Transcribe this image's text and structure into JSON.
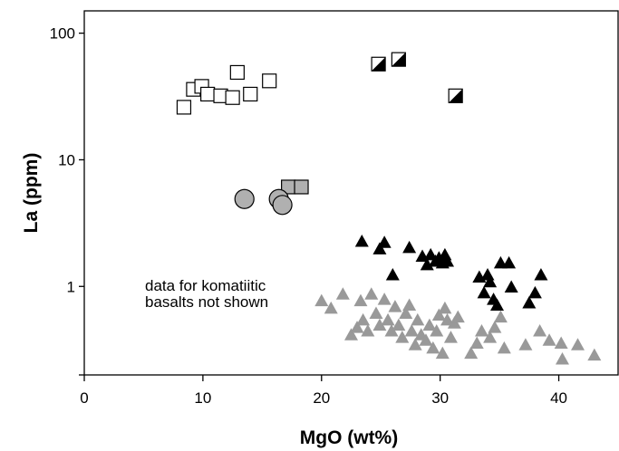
{
  "chart_data": {
    "type": "scatter",
    "xlabel": "MgO (wt%)",
    "ylabel": "La (ppm)",
    "xlim": [
      0,
      45
    ],
    "ylim": [
      0.2,
      150
    ],
    "y_scale": "log",
    "x_ticks": [
      0,
      10,
      20,
      30,
      40
    ],
    "x_tick_labels": [
      "0",
      "10",
      "20",
      "30",
      "40"
    ],
    "y_ticks": [
      1,
      10,
      100
    ],
    "y_tick_labels": [
      "1",
      "10",
      "100"
    ],
    "grid": false,
    "annotation": "data for komatiitic basalts not shown",
    "annotation_lines": [
      "data for komatiitic",
      "basalts not shown"
    ],
    "series": [
      {
        "marker": "open-square",
        "color": "#ffffff",
        "points": [
          [
            8.4,
            26
          ],
          [
            9.2,
            36
          ],
          [
            9.9,
            38
          ],
          [
            10.4,
            33
          ],
          [
            11.5,
            32
          ],
          [
            12.5,
            31
          ],
          [
            12.9,
            49
          ],
          [
            14,
            33
          ],
          [
            15.6,
            42
          ]
        ]
      },
      {
        "marker": "half-filled-square",
        "color": "#000000",
        "points": [
          [
            24.8,
            57
          ],
          [
            26.5,
            62
          ],
          [
            31.3,
            32
          ]
        ]
      },
      {
        "marker": "grey-square",
        "color": "#b0b0b0",
        "points": [
          [
            17.2,
            6.1
          ],
          [
            18.3,
            6.1
          ]
        ]
      },
      {
        "marker": "grey-circle",
        "color": "#b0b0b0",
        "points": [
          [
            13.5,
            4.9
          ],
          [
            16.4,
            4.9
          ],
          [
            16.7,
            4.4
          ]
        ]
      },
      {
        "marker": "black-triangle",
        "color": "#000000",
        "points": [
          [
            23.4,
            2.3
          ],
          [
            24.9,
            2.0
          ],
          [
            25.3,
            2.25
          ],
          [
            26,
            1.25
          ],
          [
            27.4,
            2.05
          ],
          [
            28.5,
            1.75
          ],
          [
            28.9,
            1.5
          ],
          [
            29.2,
            1.8
          ],
          [
            29.6,
            1.6
          ],
          [
            29.9,
            1.7
          ],
          [
            30.2,
            1.55
          ],
          [
            30.4,
            1.8
          ],
          [
            30.6,
            1.6
          ],
          [
            33.3,
            1.2
          ],
          [
            33.7,
            0.9
          ],
          [
            34,
            1.25
          ],
          [
            34.2,
            1.1
          ],
          [
            34.5,
            0.8
          ],
          [
            34.8,
            0.72
          ],
          [
            35.1,
            1.55
          ],
          [
            35.8,
            1.55
          ],
          [
            36,
            1.0
          ],
          [
            37.5,
            0.75
          ],
          [
            38,
            0.9
          ],
          [
            38.5,
            1.25
          ]
        ]
      },
      {
        "marker": "grey-triangle",
        "color": "#999999",
        "points": [
          [
            20,
            0.78
          ],
          [
            20.8,
            0.68
          ],
          [
            21.8,
            0.88
          ],
          [
            22.5,
            0.42
          ],
          [
            23,
            0.48
          ],
          [
            23.3,
            0.78
          ],
          [
            23.5,
            0.55
          ],
          [
            23.9,
            0.45
          ],
          [
            24.2,
            0.88
          ],
          [
            24.6,
            0.62
          ],
          [
            24.9,
            0.5
          ],
          [
            25.3,
            0.8
          ],
          [
            25.6,
            0.55
          ],
          [
            25.9,
            0.45
          ],
          [
            26.2,
            0.7
          ],
          [
            26.5,
            0.5
          ],
          [
            26.8,
            0.4
          ],
          [
            27.1,
            0.62
          ],
          [
            27.4,
            0.72
          ],
          [
            27.6,
            0.45
          ],
          [
            27.9,
            0.35
          ],
          [
            28.1,
            0.55
          ],
          [
            28.4,
            0.42
          ],
          [
            28.8,
            0.38
          ],
          [
            29.1,
            0.5
          ],
          [
            29.4,
            0.33
          ],
          [
            29.7,
            0.45
          ],
          [
            29.9,
            0.6
          ],
          [
            30.2,
            0.3
          ],
          [
            30.4,
            0.68
          ],
          [
            30.6,
            0.55
          ],
          [
            30.9,
            0.4
          ],
          [
            31.2,
            0.52
          ],
          [
            31.5,
            0.58
          ],
          [
            32.6,
            0.3
          ],
          [
            33.1,
            0.36
          ],
          [
            33.5,
            0.45
          ],
          [
            34.2,
            0.4
          ],
          [
            34.6,
            0.48
          ],
          [
            35.1,
            0.58
          ],
          [
            35.4,
            0.33
          ],
          [
            37.2,
            0.35
          ],
          [
            38.4,
            0.45
          ],
          [
            39.2,
            0.38
          ],
          [
            40.2,
            0.36
          ],
          [
            40.3,
            0.27
          ],
          [
            41.6,
            0.35
          ],
          [
            43,
            0.29
          ]
        ]
      }
    ]
  }
}
